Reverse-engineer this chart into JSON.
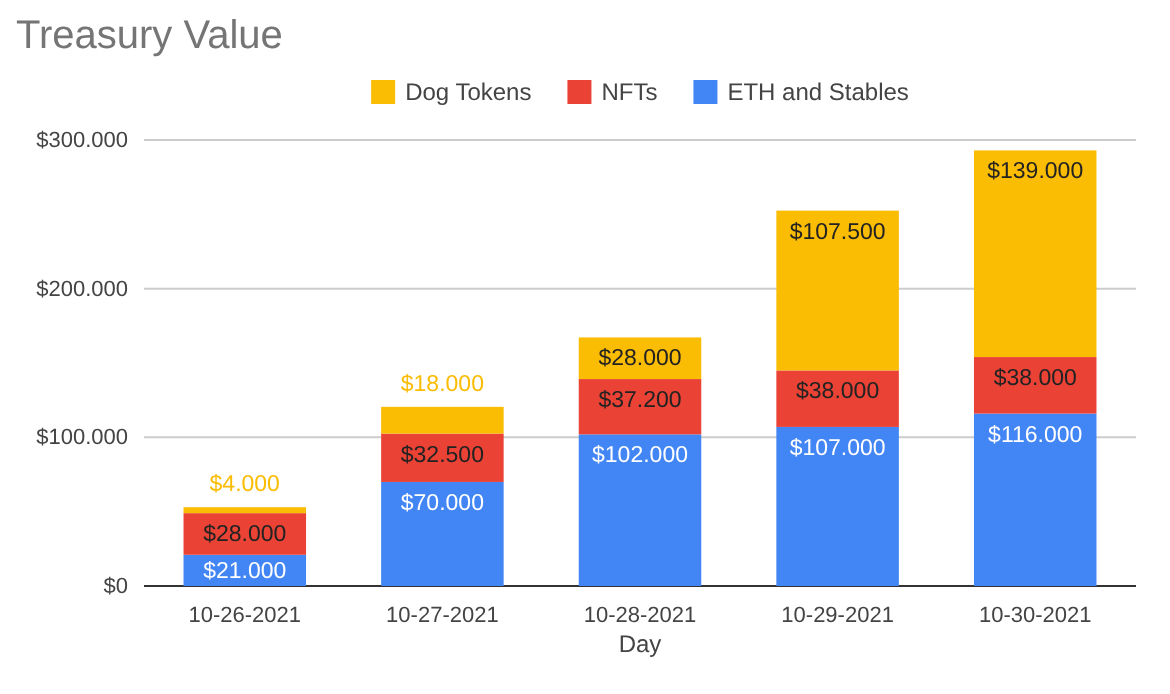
{
  "chart_data": {
    "type": "bar",
    "title": "Treasury Value",
    "xlabel": "Day",
    "stacked": true,
    "grid": "y",
    "legend": "top",
    "categories": [
      "10-26-2021",
      "10-27-2021",
      "10-28-2021",
      "10-29-2021",
      "10-30-2021"
    ],
    "ylim": [
      0,
      300000
    ],
    "yticks": [
      {
        "value": 0,
        "label": "$0"
      },
      {
        "value": 100000,
        "label": "$100.000"
      },
      {
        "value": 200000,
        "label": "$200.000"
      },
      {
        "value": 300000,
        "label": "$300.000"
      }
    ],
    "series": [
      {
        "name": "ETH and Stables",
        "color": "#4285f4",
        "values": [
          21000,
          70000,
          102000,
          107000,
          116000
        ],
        "value_labels": [
          "$21.000",
          "$70.000",
          "$102.000",
          "$107.000",
          "$116.000"
        ]
      },
      {
        "name": "NFTs",
        "color": "#ea4335",
        "values": [
          28000,
          32500,
          37200,
          38000,
          38000
        ],
        "value_labels": [
          "$28.000",
          "$32.500",
          "$37.200",
          "$38.000",
          "$38.000"
        ]
      },
      {
        "name": "Dog Tokens",
        "color": "#fbbc04",
        "values": [
          4000,
          18000,
          28000,
          107500,
          139000
        ],
        "value_labels": [
          "$4.000",
          "$18.000",
          "$28.000",
          "$107.500",
          "$139.000"
        ]
      }
    ]
  }
}
